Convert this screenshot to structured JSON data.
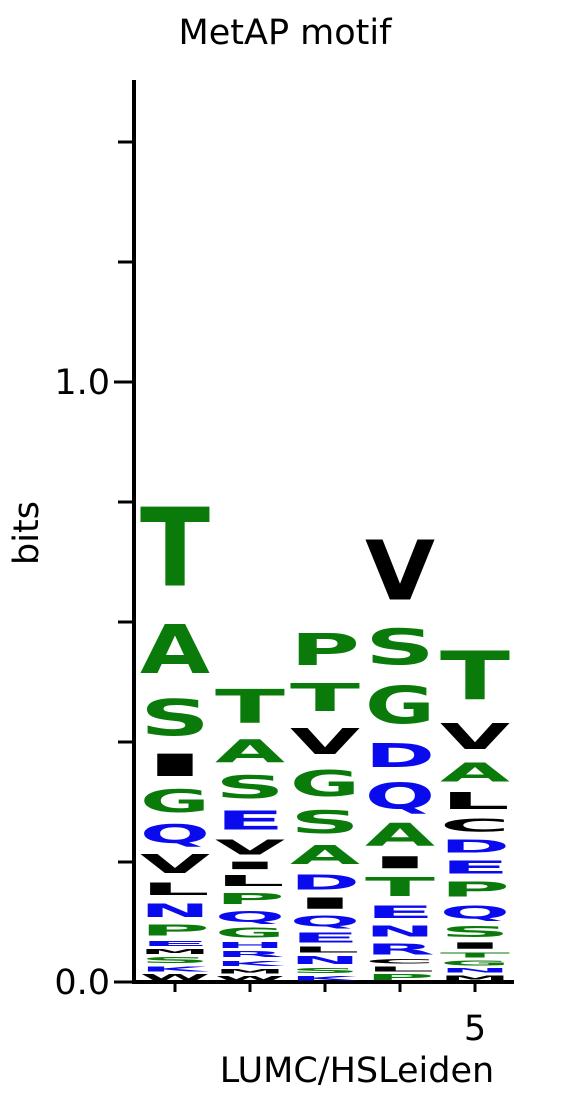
{
  "chart_data": {
    "type": "sequence-logo",
    "title": "MetAP motif",
    "xlabel": "LUMC/HSLeiden",
    "ylabel": "bits",
    "ylim": [
      0,
      1.0
    ],
    "y_tick_labels": [
      {
        "value": 0,
        "label": "0.0"
      },
      {
        "value": 1.0,
        "label": "1.0"
      }
    ],
    "y_minor_ticks": [
      0.2,
      0.4,
      0.6,
      0.8,
      1.2,
      1.4
    ],
    "y_axis_top": 1.5,
    "x_tick_labels": [
      {
        "position": 5,
        "label": "5"
      }
    ],
    "color_groups": {
      "green": "#0a7a0a",
      "blue": "#0a0aee",
      "black": "#000000"
    },
    "positions": [
      {
        "position": 1,
        "letters": [
          {
            "letter": "W",
            "color": "black",
            "bits": 0.015
          },
          {
            "letter": "K",
            "color": "blue",
            "bits": 0.014
          },
          {
            "letter": "S",
            "color": "green",
            "bits": 0.015
          },
          {
            "letter": "M",
            "color": "black",
            "bits": 0.013
          },
          {
            "letter": "E",
            "color": "blue",
            "bits": 0.014
          },
          {
            "letter": "P",
            "color": "green",
            "bits": 0.03
          },
          {
            "letter": "N",
            "color": "blue",
            "bits": 0.037
          },
          {
            "letter": "L",
            "color": "black",
            "bits": 0.033
          },
          {
            "letter": "V",
            "color": "black",
            "bits": 0.05
          },
          {
            "letter": "Q",
            "color": "blue",
            "bits": 0.05
          },
          {
            "letter": "G",
            "color": "green",
            "bits": 0.06
          },
          {
            "letter": "I",
            "color": "black",
            "bits": 0.06
          },
          {
            "letter": "S",
            "color": "green",
            "bits": 0.097
          },
          {
            "letter": "A",
            "color": "green",
            "bits": 0.13
          },
          {
            "letter": "T",
            "color": "green",
            "bits": 0.21
          }
        ]
      },
      {
        "position": 2,
        "letters": [
          {
            "letter": "W",
            "color": "black",
            "bits": 0.012
          },
          {
            "letter": "M",
            "color": "black",
            "bits": 0.012
          },
          {
            "letter": "K",
            "color": "blue",
            "bits": 0.014
          },
          {
            "letter": "R",
            "color": "blue",
            "bits": 0.016
          },
          {
            "letter": "H",
            "color": "blue",
            "bits": 0.015
          },
          {
            "letter": "G",
            "color": "green",
            "bits": 0.025
          },
          {
            "letter": "Q",
            "color": "blue",
            "bits": 0.03
          },
          {
            "letter": "P",
            "color": "green",
            "bits": 0.03
          },
          {
            "letter": "L",
            "color": "black",
            "bits": 0.03
          },
          {
            "letter": "I",
            "color": "black",
            "bits": 0.02
          },
          {
            "letter": "V",
            "color": "black",
            "bits": 0.04
          },
          {
            "letter": "E",
            "color": "blue",
            "bits": 0.05
          },
          {
            "letter": "S",
            "color": "green",
            "bits": 0.06
          },
          {
            "letter": "A",
            "color": "green",
            "bits": 0.06
          },
          {
            "letter": "T",
            "color": "green",
            "bits": 0.09
          }
        ]
      },
      {
        "position": 3,
        "letters": [
          {
            "letter": "K",
            "color": "blue",
            "bits": 0.012
          },
          {
            "letter": "S",
            "color": "green",
            "bits": 0.014
          },
          {
            "letter": "N",
            "color": "blue",
            "bits": 0.02
          },
          {
            "letter": "L",
            "color": "black",
            "bits": 0.015
          },
          {
            "letter": "E",
            "color": "blue",
            "bits": 0.025
          },
          {
            "letter": "Q",
            "color": "blue",
            "bits": 0.03
          },
          {
            "letter": "I",
            "color": "black",
            "bits": 0.03
          },
          {
            "letter": "D",
            "color": "blue",
            "bits": 0.04
          },
          {
            "letter": "A",
            "color": "green",
            "bits": 0.05
          },
          {
            "letter": "S",
            "color": "green",
            "bits": 0.06
          },
          {
            "letter": "G",
            "color": "green",
            "bits": 0.07
          },
          {
            "letter": "V",
            "color": "black",
            "bits": 0.07
          },
          {
            "letter": "T",
            "color": "green",
            "bits": 0.075
          },
          {
            "letter": "P",
            "color": "green",
            "bits": 0.085
          }
        ]
      },
      {
        "position": 4,
        "letters": [
          {
            "letter": "P",
            "color": "green",
            "bits": 0.015
          },
          {
            "letter": "L",
            "color": "black",
            "bits": 0.013
          },
          {
            "letter": "C",
            "color": "black",
            "bits": 0.012
          },
          {
            "letter": "R",
            "color": "blue",
            "bits": 0.03
          },
          {
            "letter": "N",
            "color": "blue",
            "bits": 0.03
          },
          {
            "letter": "E",
            "color": "blue",
            "bits": 0.033
          },
          {
            "letter": "T",
            "color": "green",
            "bits": 0.05
          },
          {
            "letter": "I",
            "color": "black",
            "bits": 0.032
          },
          {
            "letter": "A",
            "color": "green",
            "bits": 0.06
          },
          {
            "letter": "Q",
            "color": "blue",
            "bits": 0.07
          },
          {
            "letter": "D",
            "color": "blue",
            "bits": 0.065
          },
          {
            "letter": "G",
            "color": "green",
            "bits": 0.1
          },
          {
            "letter": "S",
            "color": "green",
            "bits": 0.095
          },
          {
            "letter": "V",
            "color": "black",
            "bits": 0.16
          }
        ]
      },
      {
        "position": 5,
        "letters": [
          {
            "letter": "M",
            "color": "black",
            "bits": 0.013
          },
          {
            "letter": "N",
            "color": "blue",
            "bits": 0.012
          },
          {
            "letter": "G",
            "color": "green",
            "bits": 0.013
          },
          {
            "letter": "T",
            "color": "green",
            "bits": 0.014
          },
          {
            "letter": "I",
            "color": "black",
            "bits": 0.017
          },
          {
            "letter": "S",
            "color": "green",
            "bits": 0.03
          },
          {
            "letter": "Q",
            "color": "blue",
            "bits": 0.035
          },
          {
            "letter": "P",
            "color": "green",
            "bits": 0.04
          },
          {
            "letter": "E",
            "color": "blue",
            "bits": 0.035
          },
          {
            "letter": "D",
            "color": "blue",
            "bits": 0.035
          },
          {
            "letter": "C",
            "color": "black",
            "bits": 0.035
          },
          {
            "letter": "L",
            "color": "black",
            "bits": 0.045
          },
          {
            "letter": "A",
            "color": "green",
            "bits": 0.05
          },
          {
            "letter": "V",
            "color": "black",
            "bits": 0.07
          },
          {
            "letter": "T",
            "color": "green",
            "bits": 0.13
          }
        ]
      }
    ]
  }
}
